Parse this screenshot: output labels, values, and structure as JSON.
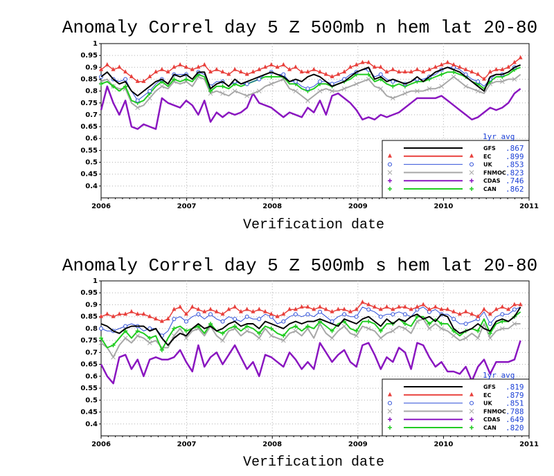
{
  "chart_data": [
    {
      "type": "line",
      "title": "Anomaly Correl  day 5  Z 500mb  n hem  lat 20-80",
      "xlabel": "Verification date",
      "ylabel": "",
      "xlim": [
        2006,
        2011.0
      ],
      "ylim": [
        0.35,
        1.0
      ],
      "x_ticks": [
        "2006",
        "2007",
        "2008",
        "2009",
        "2010",
        "2011"
      ],
      "y_ticks": [
        "0.4",
        "0.45",
        "0.5",
        "0.55",
        "0.6",
        "0.65",
        "0.7",
        "0.75",
        "0.8",
        "0.85",
        "0.9",
        "0.95",
        "1"
      ],
      "grid": true,
      "legend": {
        "title": "1yr avg",
        "placement": "bottom-right"
      },
      "series": [
        {
          "name": "GFS",
          "color": "#000000",
          "marker": "none",
          "avg": ".867",
          "values": [
            0.86,
            0.88,
            0.85,
            0.83,
            0.84,
            0.8,
            0.78,
            0.8,
            0.82,
            0.84,
            0.85,
            0.83,
            0.87,
            0.86,
            0.87,
            0.85,
            0.88,
            0.88,
            0.81,
            0.83,
            0.84,
            0.82,
            0.85,
            0.83,
            0.84,
            0.85,
            0.86,
            0.87,
            0.88,
            0.87,
            0.86,
            0.84,
            0.85,
            0.84,
            0.86,
            0.87,
            0.86,
            0.84,
            0.82,
            0.83,
            0.84,
            0.86,
            0.88,
            0.89,
            0.9,
            0.85,
            0.86,
            0.84,
            0.85,
            0.84,
            0.83,
            0.84,
            0.86,
            0.84,
            0.86,
            0.88,
            0.89,
            0.9,
            0.89,
            0.88,
            0.86,
            0.84,
            0.82,
            0.8,
            0.86,
            0.87,
            0.87,
            0.88,
            0.9,
            0.91
          ]
        },
        {
          "name": "EC",
          "color": "#e8403c",
          "marker": "triangle",
          "avg": ".899",
          "values": [
            0.89,
            0.91,
            0.89,
            0.9,
            0.88,
            0.86,
            0.84,
            0.84,
            0.86,
            0.88,
            0.89,
            0.88,
            0.9,
            0.91,
            0.9,
            0.89,
            0.9,
            0.91,
            0.88,
            0.89,
            0.88,
            0.87,
            0.89,
            0.88,
            0.87,
            0.88,
            0.89,
            0.9,
            0.91,
            0.9,
            0.91,
            0.89,
            0.9,
            0.88,
            0.88,
            0.89,
            0.88,
            0.87,
            0.86,
            0.87,
            0.88,
            0.9,
            0.91,
            0.92,
            0.92,
            0.9,
            0.9,
            0.88,
            0.89,
            0.88,
            0.88,
            0.88,
            0.89,
            0.88,
            0.89,
            0.9,
            0.91,
            0.92,
            0.91,
            0.9,
            0.89,
            0.88,
            0.87,
            0.85,
            0.88,
            0.89,
            0.89,
            0.9,
            0.92,
            0.94
          ]
        },
        {
          "name": "UK",
          "color": "#3050d8",
          "marker": "circle",
          "avg": ".853",
          "values": [
            0.86,
            0.88,
            0.85,
            0.84,
            0.85,
            0.8,
            0.76,
            0.78,
            0.8,
            0.83,
            0.85,
            0.83,
            0.87,
            0.87,
            0.87,
            0.85,
            0.88,
            0.87,
            0.82,
            0.84,
            0.84,
            0.82,
            0.84,
            0.83,
            0.83,
            0.84,
            0.85,
            0.87,
            0.88,
            0.87,
            0.87,
            0.84,
            0.84,
            0.82,
            0.81,
            0.82,
            0.84,
            0.84,
            0.83,
            0.84,
            0.85,
            0.87,
            0.88,
            0.89,
            0.89,
            0.86,
            0.87,
            0.85,
            0.84,
            0.84,
            0.83,
            0.84,
            0.85,
            0.85,
            0.86,
            0.87,
            0.89,
            0.9,
            0.9,
            0.89,
            0.87,
            0.85,
            0.84,
            0.82,
            0.85,
            0.87,
            0.87,
            0.88,
            0.9,
            0.91
          ]
        },
        {
          "name": "FNMOC",
          "color": "#a8a8a8",
          "marker": "cross",
          "avg": ".823",
          "values": [
            0.84,
            0.85,
            0.82,
            0.81,
            0.81,
            0.75,
            0.73,
            0.74,
            0.77,
            0.8,
            0.82,
            0.81,
            0.84,
            0.83,
            0.84,
            0.82,
            0.86,
            0.85,
            0.79,
            0.8,
            0.79,
            0.78,
            0.8,
            0.79,
            0.78,
            0.79,
            0.8,
            0.82,
            0.83,
            0.84,
            0.85,
            0.81,
            0.8,
            0.78,
            0.76,
            0.78,
            0.8,
            0.81,
            0.8,
            0.8,
            0.81,
            0.82,
            0.83,
            0.84,
            0.85,
            0.82,
            0.81,
            0.78,
            0.77,
            0.78,
            0.79,
            0.8,
            0.8,
            0.8,
            0.81,
            0.81,
            0.82,
            0.84,
            0.86,
            0.84,
            0.82,
            0.81,
            0.8,
            0.79,
            0.83,
            0.84,
            0.84,
            0.85,
            0.85,
            0.87
          ]
        },
        {
          "name": "CDAS",
          "color": "#8a16c0",
          "marker": "plus",
          "avg": ".746",
          "values": [
            0.72,
            0.82,
            0.75,
            0.7,
            0.76,
            0.65,
            0.64,
            0.66,
            0.65,
            0.64,
            0.77,
            0.75,
            0.74,
            0.73,
            0.76,
            0.74,
            0.7,
            0.76,
            0.67,
            0.71,
            0.69,
            0.71,
            0.7,
            0.71,
            0.73,
            0.79,
            0.75,
            0.74,
            0.73,
            0.71,
            0.69,
            0.71,
            0.7,
            0.69,
            0.73,
            0.71,
            0.76,
            0.7,
            0.78,
            0.79,
            0.77,
            0.75,
            0.72,
            0.68,
            0.69,
            0.68,
            0.7,
            0.69,
            0.7,
            0.71,
            0.73,
            0.75,
            0.77,
            0.77,
            0.77,
            0.77,
            0.78,
            0.76,
            0.74,
            0.72,
            0.7,
            0.68,
            0.69,
            0.71,
            0.73,
            0.72,
            0.73,
            0.75,
            0.79,
            0.81
          ]
        },
        {
          "name": "CAN",
          "color": "#22cc22",
          "marker": "plus",
          "avg": ".862",
          "values": [
            0.83,
            0.84,
            0.82,
            0.8,
            0.82,
            0.76,
            0.75,
            0.76,
            0.79,
            0.82,
            0.84,
            0.82,
            0.85,
            0.84,
            0.85,
            0.84,
            0.87,
            0.86,
            0.8,
            0.82,
            0.82,
            0.81,
            0.83,
            0.82,
            0.83,
            0.84,
            0.85,
            0.86,
            0.86,
            0.86,
            0.86,
            0.83,
            0.83,
            0.81,
            0.8,
            0.81,
            0.83,
            0.83,
            0.82,
            0.83,
            0.84,
            0.85,
            0.87,
            0.87,
            0.87,
            0.84,
            0.85,
            0.83,
            0.82,
            0.83,
            0.82,
            0.83,
            0.84,
            0.84,
            0.85,
            0.86,
            0.87,
            0.88,
            0.88,
            0.87,
            0.86,
            0.84,
            0.83,
            0.81,
            0.84,
            0.86,
            0.86,
            0.87,
            0.89,
            0.9
          ]
        }
      ]
    },
    {
      "type": "line",
      "title": "Anomaly Correl  day 5  Z 500mb  s hem  lat 20-80",
      "xlabel": "Verification date",
      "ylabel": "",
      "xlim": [
        2006,
        2011.0
      ],
      "ylim": [
        0.35,
        1.0
      ],
      "x_ticks": [
        "2006",
        "2007",
        "2008",
        "2009",
        "2010",
        "2011"
      ],
      "y_ticks": [
        "0.4",
        "0.45",
        "0.5",
        "0.55",
        "0.6",
        "0.65",
        "0.7",
        "0.75",
        "0.8",
        "0.85",
        "0.9",
        "0.95",
        "1"
      ],
      "grid": true,
      "legend": {
        "title": "1yr avg",
        "placement": "bottom-right"
      },
      "series": [
        {
          "name": "GFS",
          "color": "#000000",
          "marker": "none",
          "avg": ".819",
          "values": [
            0.82,
            0.81,
            0.79,
            0.78,
            0.8,
            0.81,
            0.81,
            0.81,
            0.79,
            0.8,
            0.76,
            0.73,
            0.76,
            0.78,
            0.77,
            0.8,
            0.82,
            0.8,
            0.81,
            0.79,
            0.8,
            0.82,
            0.83,
            0.81,
            0.82,
            0.82,
            0.8,
            0.83,
            0.82,
            0.81,
            0.8,
            0.82,
            0.83,
            0.82,
            0.83,
            0.83,
            0.84,
            0.83,
            0.82,
            0.81,
            0.84,
            0.83,
            0.82,
            0.84,
            0.85,
            0.83,
            0.81,
            0.84,
            0.82,
            0.84,
            0.83,
            0.85,
            0.86,
            0.84,
            0.85,
            0.83,
            0.86,
            0.85,
            0.8,
            0.78,
            0.79,
            0.8,
            0.82,
            0.8,
            0.79,
            0.83,
            0.84,
            0.83,
            0.85,
            0.89
          ]
        },
        {
          "name": "EC",
          "color": "#e8403c",
          "marker": "triangle",
          "avg": ".879",
          "values": [
            0.85,
            0.86,
            0.85,
            0.86,
            0.86,
            0.87,
            0.86,
            0.86,
            0.85,
            0.84,
            0.83,
            0.84,
            0.88,
            0.89,
            0.86,
            0.89,
            0.88,
            0.87,
            0.88,
            0.87,
            0.86,
            0.88,
            0.89,
            0.87,
            0.88,
            0.87,
            0.88,
            0.87,
            0.86,
            0.85,
            0.86,
            0.88,
            0.88,
            0.89,
            0.89,
            0.88,
            0.89,
            0.88,
            0.87,
            0.88,
            0.88,
            0.87,
            0.88,
            0.91,
            0.9,
            0.89,
            0.88,
            0.89,
            0.88,
            0.89,
            0.89,
            0.88,
            0.89,
            0.9,
            0.88,
            0.89,
            0.88,
            0.88,
            0.87,
            0.86,
            0.87,
            0.86,
            0.85,
            0.88,
            0.86,
            0.88,
            0.89,
            0.88,
            0.9,
            0.9
          ]
        },
        {
          "name": "UK",
          "color": "#3050d8",
          "marker": "circle",
          "avg": ".851",
          "values": [
            0.8,
            0.79,
            0.79,
            0.8,
            0.81,
            0.82,
            0.81,
            0.79,
            0.8,
            0.8,
            0.77,
            0.79,
            0.84,
            0.85,
            0.83,
            0.85,
            0.86,
            0.84,
            0.86,
            0.84,
            0.83,
            0.85,
            0.84,
            0.83,
            0.85,
            0.84,
            0.84,
            0.86,
            0.85,
            0.82,
            0.83,
            0.85,
            0.86,
            0.85,
            0.86,
            0.85,
            0.87,
            0.85,
            0.83,
            0.85,
            0.86,
            0.85,
            0.85,
            0.89,
            0.88,
            0.87,
            0.85,
            0.86,
            0.86,
            0.87,
            0.86,
            0.85,
            0.88,
            0.89,
            0.87,
            0.88,
            0.86,
            0.86,
            0.84,
            0.82,
            0.82,
            0.83,
            0.84,
            0.87,
            0.82,
            0.85,
            0.86,
            0.86,
            0.88,
            0.89
          ]
        },
        {
          "name": "FNMOC",
          "color": "#a8a8a8",
          "marker": "cross",
          "avg": ".788",
          "values": [
            0.74,
            0.72,
            0.68,
            0.73,
            0.76,
            0.74,
            0.77,
            0.76,
            0.74,
            0.75,
            0.72,
            0.72,
            0.77,
            0.8,
            0.76,
            0.79,
            0.8,
            0.77,
            0.81,
            0.77,
            0.75,
            0.79,
            0.8,
            0.77,
            0.79,
            0.78,
            0.76,
            0.8,
            0.77,
            0.76,
            0.75,
            0.78,
            0.79,
            0.77,
            0.8,
            0.76,
            0.82,
            0.78,
            0.76,
            0.79,
            0.81,
            0.78,
            0.77,
            0.81,
            0.8,
            0.79,
            0.76,
            0.78,
            0.79,
            0.81,
            0.8,
            0.78,
            0.83,
            0.84,
            0.8,
            0.82,
            0.8,
            0.79,
            0.77,
            0.75,
            0.76,
            0.78,
            0.76,
            0.82,
            0.76,
            0.79,
            0.8,
            0.8,
            0.82,
            0.82
          ]
        },
        {
          "name": "CDAS",
          "color": "#8a16c0",
          "marker": "plus",
          "avg": ".649",
          "values": [
            0.65,
            0.6,
            0.57,
            0.68,
            0.69,
            0.63,
            0.67,
            0.6,
            0.67,
            0.68,
            0.67,
            0.67,
            0.68,
            0.71,
            0.66,
            0.62,
            0.73,
            0.64,
            0.68,
            0.7,
            0.65,
            0.69,
            0.73,
            0.68,
            0.63,
            0.66,
            0.6,
            0.69,
            0.68,
            0.66,
            0.64,
            0.7,
            0.67,
            0.63,
            0.66,
            0.63,
            0.74,
            0.7,
            0.66,
            0.69,
            0.71,
            0.66,
            0.64,
            0.73,
            0.74,
            0.69,
            0.63,
            0.68,
            0.66,
            0.72,
            0.7,
            0.63,
            0.74,
            0.73,
            0.68,
            0.64,
            0.66,
            0.62,
            0.62,
            0.61,
            0.64,
            0.58,
            0.64,
            0.67,
            0.61,
            0.66,
            0.66,
            0.66,
            0.67,
            0.75
          ]
        },
        {
          "name": "CAN",
          "color": "#22cc22",
          "marker": "plus",
          "avg": ".820",
          "values": [
            0.76,
            0.72,
            0.73,
            0.76,
            0.79,
            0.76,
            0.79,
            0.78,
            0.76,
            0.77,
            0.71,
            0.76,
            0.8,
            0.81,
            0.79,
            0.8,
            0.81,
            0.78,
            0.82,
            0.79,
            0.78,
            0.8,
            0.81,
            0.79,
            0.81,
            0.8,
            0.78,
            0.81,
            0.8,
            0.78,
            0.77,
            0.8,
            0.81,
            0.79,
            0.81,
            0.8,
            0.83,
            0.81,
            0.79,
            0.82,
            0.83,
            0.8,
            0.79,
            0.83,
            0.83,
            0.82,
            0.79,
            0.82,
            0.82,
            0.84,
            0.82,
            0.81,
            0.85,
            0.85,
            0.82,
            0.84,
            0.82,
            0.82,
            0.79,
            0.77,
            0.79,
            0.8,
            0.79,
            0.84,
            0.78,
            0.82,
            0.83,
            0.83,
            0.85,
            0.87
          ]
        }
      ]
    }
  ]
}
